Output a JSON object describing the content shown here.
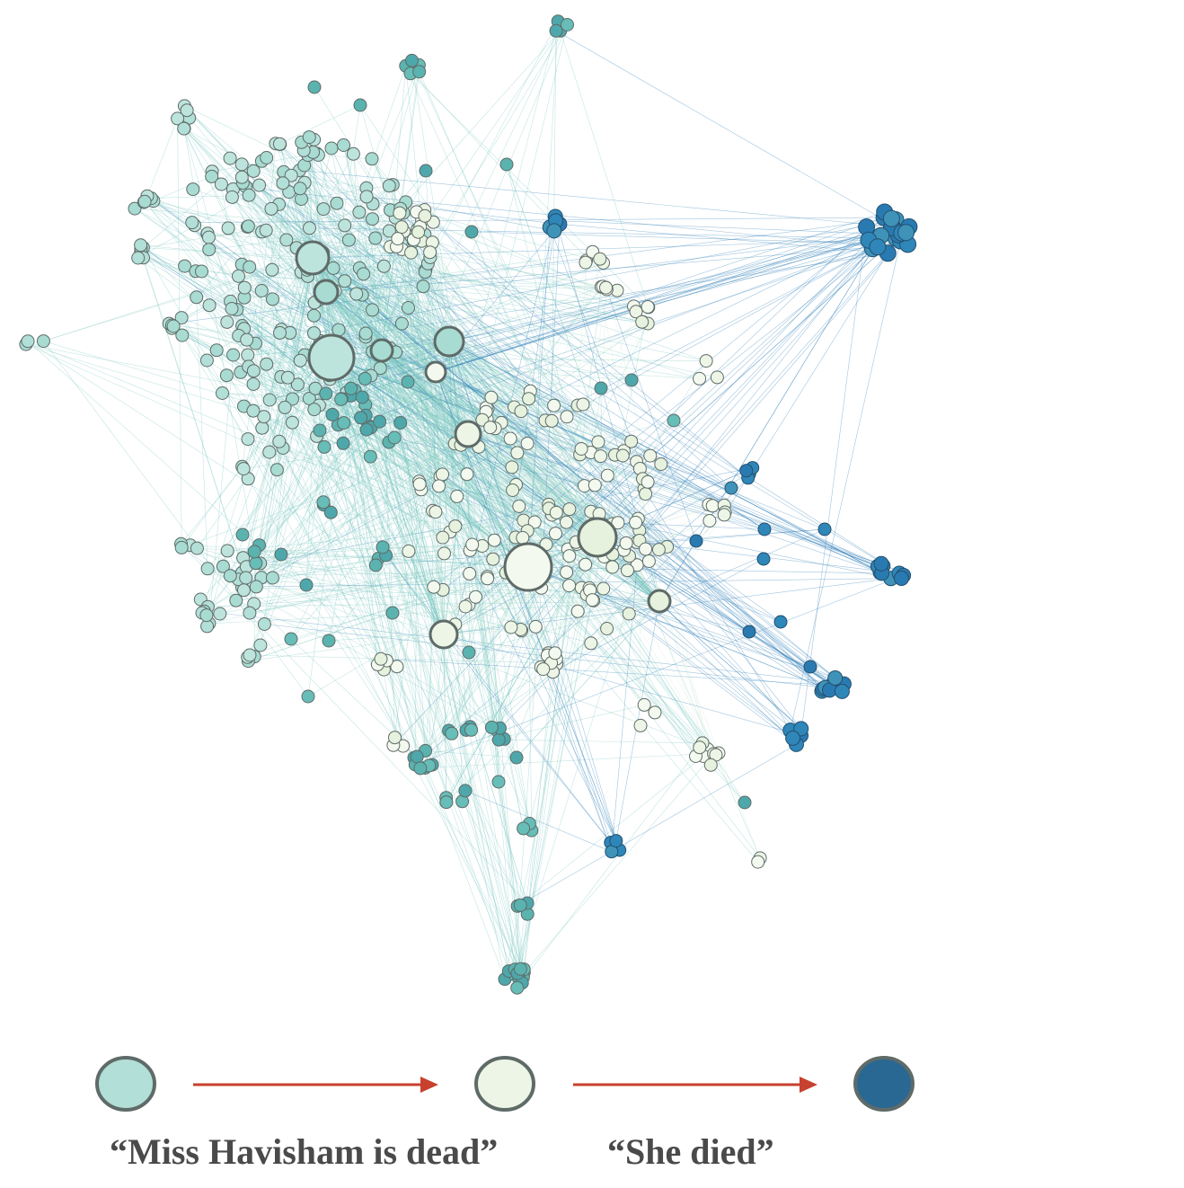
{
  "colors": {
    "stage_start": "#b2dfd7",
    "stage_middle": "#edf6e6",
    "stage_end": "#2a6894",
    "arrow": "#c8412e",
    "node_stroke": "#5f6b68",
    "label_text": "#4a4a4a",
    "edge_teal": "#7cc8c0",
    "edge_light": "#cfe8d8",
    "edge_blue": "#2f7fb8"
  },
  "legend": {
    "stages": [
      "stage_start",
      "stage_middle",
      "stage_end"
    ],
    "start_label": "“Miss Havisham is dead”",
    "end_label": "“She died”"
  }
}
